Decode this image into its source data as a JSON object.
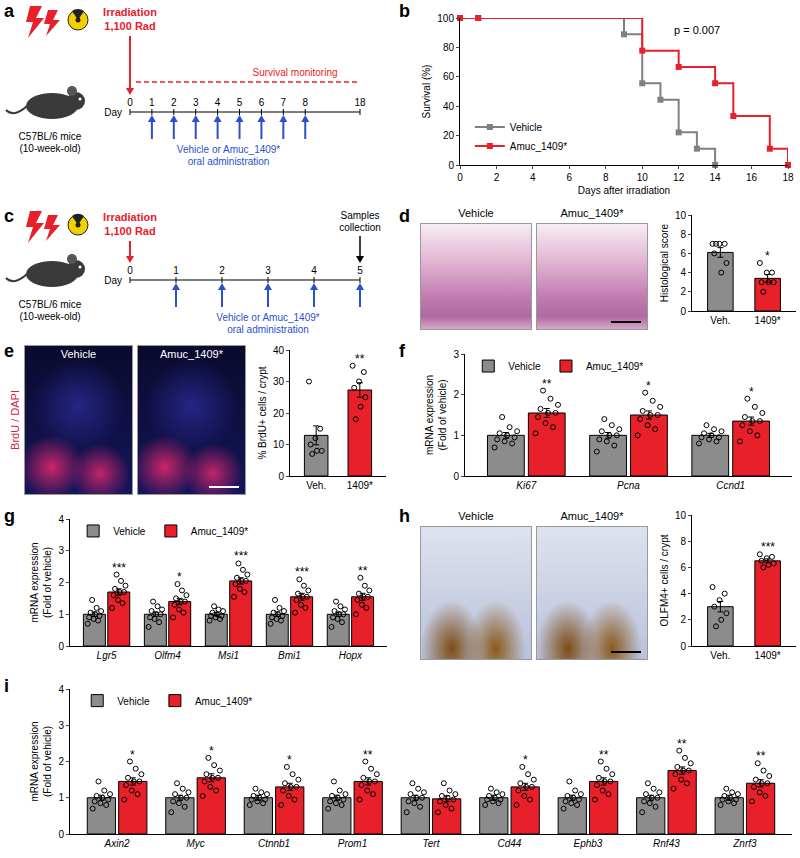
{
  "diagrams": [
    {
      "panel": "a",
      "irradiation": [
        "Irradiation",
        "1,100 Rad"
      ],
      "mouse": [
        "C57BL/6 mice",
        "(10-week-old)"
      ],
      "day_label": "Day",
      "days": [
        0,
        1,
        2,
        3,
        4,
        5,
        6,
        7,
        8,
        18
      ],
      "dose_days": [
        1,
        2,
        3,
        4,
        5,
        6,
        7,
        8
      ],
      "treatment": [
        "Vehicle or Amuc_1409*",
        "oral administration"
      ],
      "monitoring": {
        "text": "Survival monitoring",
        "from": 0,
        "to": 18
      }
    },
    {
      "panel": "c",
      "irradiation": [
        "Irradiation",
        "1,100 Rad"
      ],
      "mouse": [
        "C57BL/6 mice",
        "(10-week-old)"
      ],
      "day_label": "Day",
      "days": [
        0,
        1,
        2,
        3,
        4,
        5
      ],
      "dose_days": [
        1,
        2,
        3,
        4,
        5
      ],
      "treatment": [
        "Vehicle or Amuc_1409*",
        "oral administration"
      ],
      "collection": {
        "text": [
          "Samples",
          "collection"
        ],
        "day": 5
      }
    }
  ],
  "chart_data": [
    {
      "panel": "b",
      "type": "line",
      "x_label": "Days after irradiation",
      "y_label": [
        "Survival (%)"
      ],
      "xlim": [
        0,
        18
      ],
      "xticks": [
        0,
        2,
        4,
        6,
        8,
        10,
        12,
        14,
        16,
        18
      ],
      "ylim": [
        0,
        100
      ],
      "yticks": [
        0,
        20,
        40,
        60,
        80,
        100
      ],
      "line_style": "step",
      "marker": "square",
      "legend": "bottom-left",
      "grid": false,
      "annotations": [
        "p = 0.007"
      ],
      "series": [
        {
          "name": "Vehicle",
          "color": "#808080",
          "x": [
            0,
            1,
            9,
            10,
            11,
            12,
            13,
            14
          ],
          "values": [
            100,
            100,
            88.9,
            55.6,
            44.4,
            22.2,
            11.1,
            0
          ]
        },
        {
          "name": "Amuc_1409*",
          "color": "#e8202a",
          "x": [
            0,
            1,
            10,
            12,
            14,
            15,
            17,
            18
          ],
          "values": [
            100,
            100,
            77.8,
            66.7,
            55.6,
            33.3,
            11.1,
            0
          ]
        }
      ]
    },
    {
      "panel": "d",
      "type": "bar",
      "image_labels": [
        "Vehicle",
        "Amuc_1409*"
      ],
      "y_label": [
        "Histological score"
      ],
      "categories": [
        "Veh.",
        "1409*"
      ],
      "values": [
        6.1,
        3.4
      ],
      "colors": [
        "#8c8c8c",
        "#e8202a"
      ],
      "errors": [
        0.5,
        0.4
      ],
      "points": [
        [
          7,
          7,
          7,
          6,
          5,
          4,
          7
        ],
        [
          5,
          4,
          4,
          3,
          3,
          3,
          2
        ]
      ],
      "significance": [
        null,
        "*"
      ],
      "ylim": [
        0,
        10
      ],
      "yticks": [
        0,
        2,
        4,
        6,
        8,
        10
      ],
      "grid": false
    },
    {
      "panel": "e",
      "type": "bar",
      "image_labels": [
        "Vehicle",
        "Amuc_1409*"
      ],
      "image_caption": "BrdU / DAPI",
      "y_label": [
        "% BrdU+ cells / crypt"
      ],
      "categories": [
        "Veh.",
        "1409*"
      ],
      "values": [
        12.9,
        27.3
      ],
      "colors": [
        "#8c8c8c",
        "#e8202a"
      ],
      "errors": [
        3.0,
        2.3
      ],
      "points": [
        [
          30,
          15,
          12,
          10,
          8,
          8,
          7
        ],
        [
          35,
          33,
          30,
          28,
          25,
          22,
          18
        ]
      ],
      "significance": [
        null,
        "**"
      ],
      "ylim": [
        0,
        40
      ],
      "yticks": [
        0,
        10,
        20,
        30,
        40
      ],
      "grid": false
    },
    {
      "panel": "f",
      "type": "bar",
      "y_label": [
        "mRNA expression",
        "(Fold of vehicle)"
      ],
      "legend": "top-left",
      "grid": false,
      "categories": [
        "Ki67",
        "Pcna",
        "Ccnd1"
      ],
      "ylim": [
        0,
        3
      ],
      "yticks": [
        0,
        1,
        2,
        3
      ],
      "series": [
        {
          "name": "Vehicle",
          "color": "#8c8c8c",
          "values": [
            1.0,
            1.0,
            1.0
          ],
          "errors": [
            0.07,
            0.07,
            0.05
          ],
          "points": [
            [
              0.7,
              0.8,
              0.85,
              0.9,
              0.95,
              1.0,
              1.05,
              1.1,
              1.2,
              1.45
            ],
            [
              0.6,
              0.75,
              0.85,
              0.9,
              1.0,
              1.0,
              1.1,
              1.15,
              1.25,
              1.4
            ],
            [
              0.8,
              0.85,
              0.9,
              0.95,
              0.95,
              1.0,
              1.05,
              1.1,
              1.15,
              1.25
            ]
          ],
          "significance": [
            null,
            null,
            null
          ]
        },
        {
          "name": "Amuc_1409*",
          "color": "#e8202a",
          "values": [
            1.55,
            1.5,
            1.35
          ],
          "errors": [
            0.11,
            0.1,
            0.1
          ],
          "points": [
            [
              1.05,
              1.2,
              1.3,
              1.45,
              1.55,
              1.55,
              1.65,
              1.75,
              1.9,
              2.1
            ],
            [
              1.0,
              1.15,
              1.25,
              1.4,
              1.5,
              1.5,
              1.6,
              1.7,
              1.85,
              2.05
            ],
            [
              0.85,
              1.0,
              1.1,
              1.25,
              1.35,
              1.35,
              1.45,
              1.55,
              1.7,
              1.9
            ]
          ],
          "significance": [
            "**",
            "*",
            "*"
          ]
        }
      ]
    },
    {
      "panel": "g",
      "type": "bar",
      "y_label": [
        "mRNA expression",
        "(Fold of vehicle)"
      ],
      "legend": "top-left",
      "grid": false,
      "categories": [
        "Lgr5",
        "Olfm4",
        "Msi1",
        "Bmi1",
        "Hopx"
      ],
      "ylim": [
        0,
        4
      ],
      "yticks": [
        0,
        1,
        2,
        3,
        4
      ],
      "series": [
        {
          "name": "Vehicle",
          "color": "#8c8c8c",
          "values": [
            1.0,
            1.0,
            1.0,
            1.0,
            1.0
          ],
          "errors": [
            0.07,
            0.07,
            0.05,
            0.07,
            0.07
          ],
          "points": [
            [
              0.7,
              0.8,
              0.85,
              0.9,
              0.95,
              1.0,
              1.05,
              1.1,
              1.2,
              1.45
            ],
            [
              0.6,
              0.75,
              0.85,
              0.9,
              1.0,
              1.0,
              1.1,
              1.15,
              1.25,
              1.4
            ],
            [
              0.8,
              0.85,
              0.9,
              0.95,
              0.95,
              1.0,
              1.05,
              1.1,
              1.15,
              1.25
            ],
            [
              0.7,
              0.8,
              0.85,
              0.9,
              0.95,
              1.0,
              1.05,
              1.1,
              1.2,
              1.45
            ],
            [
              0.6,
              0.75,
              0.85,
              0.9,
              1.0,
              1.0,
              1.1,
              1.15,
              1.25,
              1.4
            ]
          ],
          "significance": [
            null,
            null,
            null,
            null,
            null
          ]
        },
        {
          "name": "Amuc_1409*",
          "color": "#e8202a",
          "values": [
            1.7,
            1.4,
            2.05,
            1.55,
            1.55
          ],
          "errors": [
            0.1,
            0.1,
            0.1,
            0.11,
            0.11
          ],
          "points": [
            [
              1.2,
              1.35,
              1.45,
              1.6,
              1.7,
              1.7,
              1.8,
              1.9,
              2.05,
              2.25
            ],
            [
              0.9,
              1.05,
              1.15,
              1.3,
              1.4,
              1.4,
              1.5,
              1.6,
              1.75,
              1.95
            ],
            [
              1.55,
              1.7,
              1.8,
              1.95,
              2.05,
              2.05,
              2.15,
              2.25,
              2.4,
              2.6
            ],
            [
              1.05,
              1.2,
              1.3,
              1.45,
              1.55,
              1.55,
              1.65,
              1.75,
              1.9,
              2.1
            ],
            [
              1.0,
              1.2,
              1.3,
              1.45,
              1.55,
              1.55,
              1.65,
              1.75,
              1.9,
              2.15
            ]
          ],
          "significance": [
            "***",
            "*",
            "***",
            "***",
            "**"
          ]
        }
      ]
    },
    {
      "panel": "h",
      "type": "bar",
      "image_labels": [
        "Vehicle",
        "Amuc_1409*"
      ],
      "y_label": [
        "OLFM4+ cells / crypt"
      ],
      "categories": [
        "Veh.",
        "1409*"
      ],
      "values": [
        3.0,
        6.5
      ],
      "colors": [
        "#8c8c8c",
        "#e8202a"
      ],
      "errors": [
        0.4,
        0.15
      ],
      "points": [
        [
          4.5,
          4,
          3.5,
          3,
          2.5,
          2,
          1.5
        ],
        [
          7,
          6.8,
          6.7,
          6.5,
          6.3,
          6.2,
          6.0
        ]
      ],
      "significance": [
        null,
        "***"
      ],
      "ylim": [
        0,
        10
      ],
      "yticks": [
        0,
        2,
        4,
        6,
        8,
        10
      ],
      "grid": false
    },
    {
      "panel": "i",
      "type": "bar",
      "y_label": [
        "mRNA expression",
        "(Fold of vehicle)"
      ],
      "legend": "top-left",
      "grid": false,
      "categories": [
        "Axin2",
        "Myc",
        "Ctnnb1",
        "Prom1",
        "Tert",
        "Cd44",
        "Ephb3",
        "Rnf43",
        "Znrf3"
      ],
      "ylim": [
        0,
        4
      ],
      "yticks": [
        0,
        1,
        2,
        3,
        4
      ],
      "series": [
        {
          "name": "Vehicle",
          "color": "#8c8c8c",
          "values": [
            1.0,
            1.0,
            1.0,
            1.0,
            1.0,
            1.0,
            1.0,
            1.0,
            1.0
          ],
          "errors": [
            0.07,
            0.07,
            0.07,
            0.07,
            0.07,
            0.07,
            0.07,
            0.07,
            0.07
          ],
          "points": [
            [
              0.7,
              0.8,
              0.85,
              0.9,
              0.95,
              1.0,
              1.05,
              1.1,
              1.2,
              1.45
            ],
            [
              0.6,
              0.75,
              0.85,
              0.9,
              1.0,
              1.0,
              1.1,
              1.15,
              1.25,
              1.4
            ],
            [
              0.8,
              0.85,
              0.9,
              0.95,
              0.95,
              1.0,
              1.05,
              1.1,
              1.15,
              1.25
            ],
            [
              0.7,
              0.8,
              0.85,
              0.9,
              0.95,
              1.0,
              1.05,
              1.1,
              1.2,
              1.45
            ],
            [
              0.6,
              0.75,
              0.85,
              0.9,
              1.0,
              1.0,
              1.1,
              1.15,
              1.25,
              1.4
            ],
            [
              0.8,
              0.85,
              0.9,
              0.95,
              0.95,
              1.0,
              1.05,
              1.1,
              1.15,
              1.25
            ],
            [
              0.7,
              0.8,
              0.85,
              0.9,
              0.95,
              1.0,
              1.05,
              1.1,
              1.2,
              1.45
            ],
            [
              0.6,
              0.75,
              0.85,
              0.9,
              1.0,
              1.0,
              1.1,
              1.15,
              1.25,
              1.4
            ],
            [
              0.8,
              0.85,
              0.9,
              0.95,
              0.95,
              1.0,
              1.05,
              1.1,
              1.15,
              1.25
            ]
          ],
          "significance": [
            null,
            null,
            null,
            null,
            null,
            null,
            null,
            null,
            null
          ]
        },
        {
          "name": "Amuc_1409*",
          "color": "#e8202a",
          "values": [
            1.45,
            1.55,
            1.3,
            1.45,
            0.97,
            1.3,
            1.45,
            1.75,
            1.4
          ],
          "errors": [
            0.1,
            0.11,
            0.1,
            0.1,
            0.08,
            0.1,
            0.1,
            0.1,
            0.1
          ],
          "points": [
            [
              0.95,
              1.1,
              1.2,
              1.35,
              1.45,
              1.45,
              1.55,
              1.65,
              1.8,
              2.0
            ],
            [
              1.05,
              1.2,
              1.3,
              1.45,
              1.55,
              1.55,
              1.65,
              1.75,
              1.9,
              2.1
            ],
            [
              0.8,
              0.95,
              1.05,
              1.2,
              1.3,
              1.3,
              1.4,
              1.5,
              1.65,
              1.85
            ],
            [
              0.95,
              1.1,
              1.2,
              1.35,
              1.45,
              1.45,
              1.55,
              1.65,
              1.8,
              2.0
            ],
            [
              0.6,
              0.7,
              0.8,
              0.9,
              0.95,
              1.0,
              1.05,
              1.1,
              1.2,
              1.4
            ],
            [
              0.8,
              0.95,
              1.05,
              1.2,
              1.3,
              1.3,
              1.4,
              1.5,
              1.65,
              1.85
            ],
            [
              0.95,
              1.1,
              1.2,
              1.35,
              1.45,
              1.45,
              1.55,
              1.65,
              1.8,
              2.0
            ],
            [
              1.25,
              1.4,
              1.5,
              1.65,
              1.75,
              1.75,
              1.85,
              1.95,
              2.1,
              2.3
            ],
            [
              0.9,
              1.05,
              1.15,
              1.3,
              1.4,
              1.4,
              1.5,
              1.6,
              1.75,
              1.95
            ]
          ],
          "significance": [
            "*",
            "*",
            "*",
            "**",
            null,
            "*",
            "**",
            "**",
            "**"
          ]
        }
      ]
    }
  ]
}
